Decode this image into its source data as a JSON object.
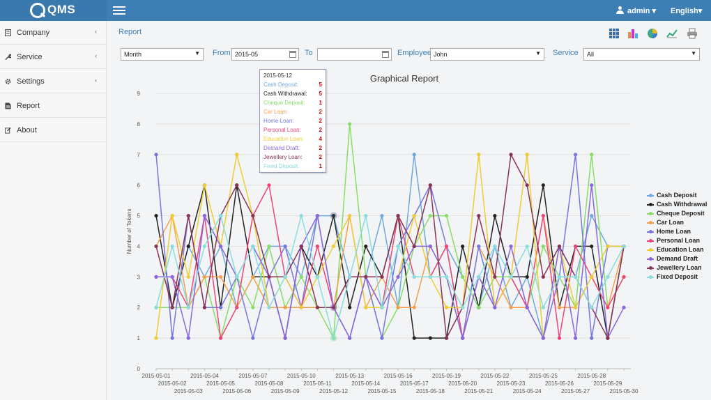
{
  "app": {
    "logo_text": "QMS",
    "user": "admin ▾",
    "language": "English▾"
  },
  "sidebar": {
    "items": [
      {
        "label": "Company",
        "icon": "building-icon",
        "caret": "‹"
      },
      {
        "label": "Service",
        "icon": "wrench-icon",
        "caret": "‹"
      },
      {
        "label": "Settings",
        "icon": "gear-icon",
        "caret": "‹"
      },
      {
        "label": "Report",
        "icon": "document-icon",
        "caret": ""
      },
      {
        "label": "About",
        "icon": "edit-icon",
        "caret": ""
      }
    ]
  },
  "breadcrumb": "Report",
  "toolbar": [
    "grid-icon",
    "bar-chart-icon",
    "pie-chart-icon",
    "line-chart-icon",
    "print-icon"
  ],
  "filters": {
    "period": "Month",
    "from_label": "From",
    "from_value": "2015-05",
    "to_label": "To",
    "to_value": "",
    "employee_label": "Employee",
    "employee_value": "John",
    "service_label": "Service",
    "service_value": "All"
  },
  "tooltip": {
    "date": "2015-05-12",
    "rows": [
      {
        "name": "Cash Deposit:",
        "value": "5"
      },
      {
        "name": "Cash Withdrawal:",
        "value": "5"
      },
      {
        "name": "Cheque Deposit:",
        "value": "1"
      },
      {
        "name": "Car Loan:",
        "value": "2"
      },
      {
        "name": "Home Loan:",
        "value": "2"
      },
      {
        "name": "Personal Loan:",
        "value": "2"
      },
      {
        "name": "Education Loan:",
        "value": "4"
      },
      {
        "name": "Demand Draft:",
        "value": "2"
      },
      {
        "name": "Jewellery Loan:",
        "value": "2"
      },
      {
        "name": "Fixed Deposit:",
        "value": "1"
      }
    ]
  },
  "chart_data": {
    "type": "line",
    "title": "Graphical Report",
    "ylabel": "Number of Tokens",
    "xlabel": "",
    "ylim": [
      0,
      9
    ],
    "y_ticks": [
      "0",
      "1",
      "2",
      "3",
      "4",
      "5",
      "6",
      "7",
      "8",
      "9"
    ],
    "legend_position": "right",
    "grid": true,
    "categories": [
      "2015-05-01",
      "2015-05-02",
      "2015-05-03",
      "2015-05-04",
      "2015-05-05",
      "2015-05-06",
      "2015-05-07",
      "2015-05-08",
      "2015-05-09",
      "2015-05-10",
      "2015-05-11",
      "2015-05-12",
      "2015-05-13",
      "2015-05-14",
      "2015-05-15",
      "2015-05-16",
      "2015-05-17",
      "2015-05-18",
      "2015-05-19",
      "2015-05-20",
      "2015-05-21",
      "2015-05-22",
      "2015-05-23",
      "2015-05-24",
      "2015-05-25",
      "2015-05-26",
      "2015-05-27",
      "2015-05-28",
      "2015-05-29",
      "2015-05-30"
    ],
    "series": [
      {
        "name": "Cash Deposit",
        "color": "#6fa8dc",
        "values": [
          2,
          2,
          4,
          3,
          4,
          2,
          3,
          4,
          4,
          3,
          5,
          5,
          3,
          3,
          5,
          2,
          7,
          3,
          4,
          3,
          2,
          4,
          2,
          3,
          1,
          4,
          3,
          5,
          4,
          4
        ]
      },
      {
        "name": "Cash Withdrawal",
        "color": "#222222",
        "values": [
          5,
          2,
          4,
          6,
          2,
          6,
          3,
          3,
          1,
          4,
          3,
          5,
          2,
          4,
          3,
          5,
          1,
          1,
          1,
          4,
          2,
          5,
          3,
          3,
          6,
          2,
          4,
          4,
          1,
          4
        ]
      },
      {
        "name": "Cheque Deposit",
        "color": "#88dd66",
        "values": [
          2,
          2,
          2,
          3,
          1,
          3,
          2,
          4,
          2,
          3,
          2,
          1,
          8,
          3,
          1,
          2,
          4,
          5,
          5,
          3,
          2,
          3,
          3,
          2,
          4,
          3,
          2,
          7,
          2,
          3
        ]
      },
      {
        "name": "Car Loan",
        "color": "#f4a04a",
        "values": [
          4,
          5,
          2,
          3,
          3,
          2,
          3,
          2,
          2,
          2,
          2,
          2,
          5,
          2,
          3,
          2,
          2,
          4,
          3,
          1,
          4,
          3,
          2,
          2,
          5,
          2,
          2,
          3,
          2,
          4
        ]
      },
      {
        "name": "Home Loan",
        "color": "#7777dd",
        "values": [
          7,
          1,
          5,
          2,
          2,
          3,
          1,
          3,
          4,
          2,
          5,
          2,
          1,
          3,
          1,
          4,
          5,
          6,
          4,
          1,
          4,
          2,
          3,
          2,
          1,
          3,
          7,
          1,
          4,
          4
        ]
      },
      {
        "name": "Personal Loan",
        "color": "#ee4477",
        "values": [
          3,
          3,
          2,
          5,
          1,
          2,
          5,
          6,
          3,
          2,
          4,
          2,
          3,
          3,
          2,
          5,
          3,
          3,
          4,
          1,
          3,
          2,
          3,
          2,
          5,
          1,
          4,
          3,
          2,
          3
        ]
      },
      {
        "name": "Education Loan",
        "color": "#eecc33",
        "values": [
          1,
          5,
          3,
          6,
          4,
          7,
          5,
          2,
          3,
          2,
          3,
          4,
          5,
          2,
          2,
          3,
          5,
          3,
          2,
          2,
          7,
          2,
          3,
          7,
          1,
          4,
          2,
          3,
          4,
          4
        ]
      },
      {
        "name": "Demand Draft",
        "color": "#8866dd",
        "values": [
          3,
          3,
          1,
          5,
          4,
          3,
          4,
          3,
          1,
          4,
          5,
          2,
          1,
          3,
          2,
          3,
          4,
          4,
          3,
          1,
          3,
          2,
          4,
          2,
          1,
          4,
          1,
          6,
          1,
          2
        ]
      },
      {
        "name": "Jewellery Loan",
        "color": "#883355",
        "values": [
          4,
          2,
          5,
          2,
          5,
          6,
          5,
          3,
          3,
          4,
          2,
          2,
          3,
          3,
          3,
          5,
          4,
          6,
          1,
          2,
          5,
          3,
          7,
          6,
          3,
          4,
          3,
          2,
          1,
          4
        ]
      },
      {
        "name": "Fixed Deposit",
        "color": "#88dddd",
        "values": [
          2,
          4,
          2,
          4,
          5,
          3,
          4,
          2,
          3,
          5,
          3,
          1,
          3,
          5,
          2,
          4,
          3,
          3,
          3,
          2,
          3,
          4,
          3,
          4,
          2,
          3,
          3,
          2,
          3,
          4
        ]
      }
    ]
  }
}
